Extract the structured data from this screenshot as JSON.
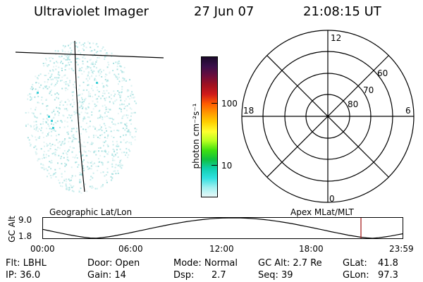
{
  "header": {
    "instrument": "Ultraviolet Imager",
    "date": "27 Jun 07",
    "time": "21:08:15 UT"
  },
  "colorbar": {
    "unit_label": "photon cm⁻²s⁻¹",
    "ticks": [
      "100",
      "10"
    ],
    "colors": [
      "#1b0a2a",
      "#3a0f4a",
      "#6b0d3c",
      "#a01020",
      "#d01a1a",
      "#ff5a00",
      "#ff9900",
      "#ffd000",
      "#ffff30",
      "#b8ff20",
      "#40e010",
      "#10c040",
      "#10d0b0",
      "#30e0e0",
      "#a0f0f0",
      "#e8f8f8"
    ]
  },
  "polar_grid": {
    "mlt_labels": {
      "top": "12",
      "left": "18",
      "right": "6",
      "bottom": "0"
    },
    "lat_labels": [
      "60",
      "70",
      "80"
    ]
  },
  "timeline": {
    "left_label": "Geographic Lat/Lon",
    "right_label": "Apex MLat/MLT",
    "y_axis_title": "GC Alt",
    "y_max": "9.0",
    "y_min": "1.8",
    "time_ticks": [
      "00:00",
      "06:00",
      "12:00",
      "18:00",
      "23:59"
    ],
    "marker_color": "#a01010"
  },
  "info": {
    "flt": "Flt: LBHL",
    "ip": "IP: 36.0",
    "door": "Door: Open",
    "gain": "Gain: 14",
    "mode": "Mode: Normal",
    "dsp_label": "Dsp:",
    "dsp_value": "2.7",
    "gc_alt": "GC Alt: 2.7 Re",
    "seq": "Seq: 39",
    "glat_label": "GLat:",
    "glat_value": "41.8",
    "glon_label": "GLon:",
    "glon_value": "97.3"
  }
}
